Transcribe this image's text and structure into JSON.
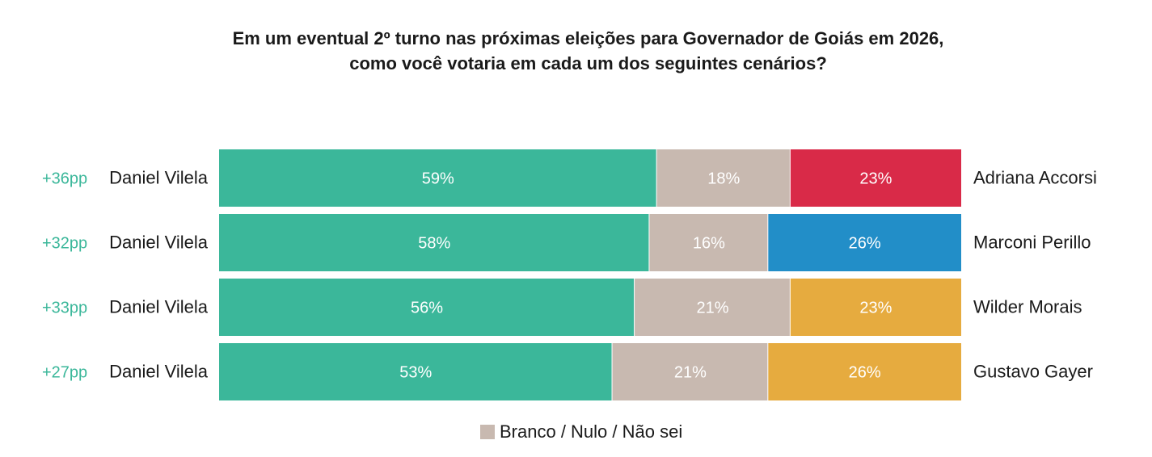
{
  "chart_data": {
    "type": "bar",
    "stacked": true,
    "orientation": "horizontal",
    "title_line1": "Em um eventual 2º turno nas próximas eleições para Governador de Goiás em 2026,",
    "title_line2": "como você votaria em cada um dos seguintes cenários?",
    "rows": [
      {
        "lead": "+36pp",
        "left_name": "Daniel Vilela",
        "right_name": "Adriana Accorsi",
        "values": [
          59,
          18,
          23
        ],
        "labels": [
          "59%",
          "18%",
          "23%"
        ],
        "colors": [
          "#3bb79a",
          "#c8b9b0",
          "#d92a48"
        ]
      },
      {
        "lead": "+32pp",
        "left_name": "Daniel Vilela",
        "right_name": "Marconi Perillo",
        "values": [
          58,
          16,
          26
        ],
        "labels": [
          "58%",
          "16%",
          "26%"
        ],
        "colors": [
          "#3bb79a",
          "#c8b9b0",
          "#228ec8"
        ]
      },
      {
        "lead": "+33pp",
        "left_name": "Daniel Vilela",
        "right_name": "Wilder Morais",
        "values": [
          56,
          21,
          23
        ],
        "labels": [
          "56%",
          "21%",
          "23%"
        ],
        "colors": [
          "#3bb79a",
          "#c8b9b0",
          "#e6ab3f"
        ]
      },
      {
        "lead": "+27pp",
        "left_name": "Daniel Vilela",
        "right_name": "Gustavo Gayer",
        "values": [
          53,
          21,
          26
        ],
        "labels": [
          "53%",
          "21%",
          "26%"
        ],
        "colors": [
          "#3bb79a",
          "#c8b9b0",
          "#e6ab3f"
        ]
      }
    ],
    "legend": {
      "label": "Branco / Nulo / Não sei",
      "color": "#c8b9b0"
    },
    "lead_color": "#3bb79a",
    "xlim": [
      0,
      100
    ]
  }
}
